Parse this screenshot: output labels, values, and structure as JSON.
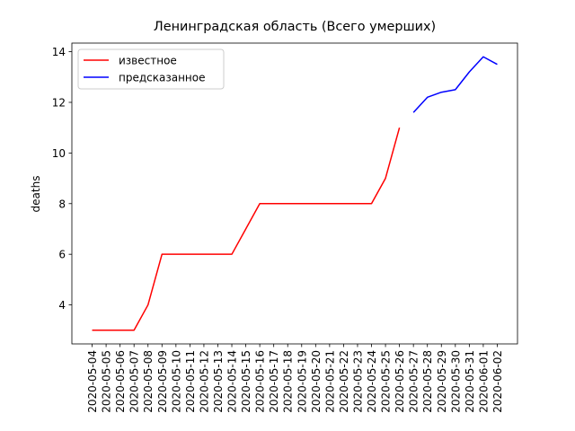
{
  "chart_data": {
    "type": "line",
    "title": "Ленинградская область (Всего умерших)",
    "y_label": "deaths",
    "categories": [
      "2020-05-04",
      "2020-05-05",
      "2020-05-06",
      "2020-05-07",
      "2020-05-08",
      "2020-05-09",
      "2020-05-10",
      "2020-05-11",
      "2020-05-12",
      "2020-05-13",
      "2020-05-14",
      "2020-05-15",
      "2020-05-16",
      "2020-05-17",
      "2020-05-18",
      "2020-05-19",
      "2020-05-20",
      "2020-05-21",
      "2020-05-22",
      "2020-05-23",
      "2020-05-24",
      "2020-05-25",
      "2020-05-26",
      "2020-05-27",
      "2020-05-28",
      "2020-05-29",
      "2020-05-30",
      "2020-05-31",
      "2020-06-01",
      "2020-06-02"
    ],
    "series": [
      {
        "name": "известное",
        "color": "#ff0000",
        "values": [
          3,
          3,
          3,
          3,
          4,
          6,
          6,
          6,
          6,
          6,
          6,
          7,
          8,
          8,
          8,
          8,
          8,
          8,
          8,
          8,
          8,
          9,
          11,
          null,
          null,
          null,
          null,
          null,
          null,
          null
        ]
      },
      {
        "name": "предсказанное",
        "color": "#0000ff",
        "values": [
          null,
          null,
          null,
          null,
          null,
          null,
          null,
          null,
          null,
          null,
          null,
          null,
          null,
          null,
          null,
          null,
          null,
          null,
          null,
          null,
          null,
          null,
          null,
          11.6,
          12.2,
          12.4,
          12.5,
          13.2,
          13.8,
          13.5
        ]
      }
    ],
    "ylim": [
      2.46,
      14.34
    ],
    "yticks": [
      4,
      6,
      8,
      10,
      12,
      14
    ],
    "grid": false,
    "legend": "upper left"
  }
}
